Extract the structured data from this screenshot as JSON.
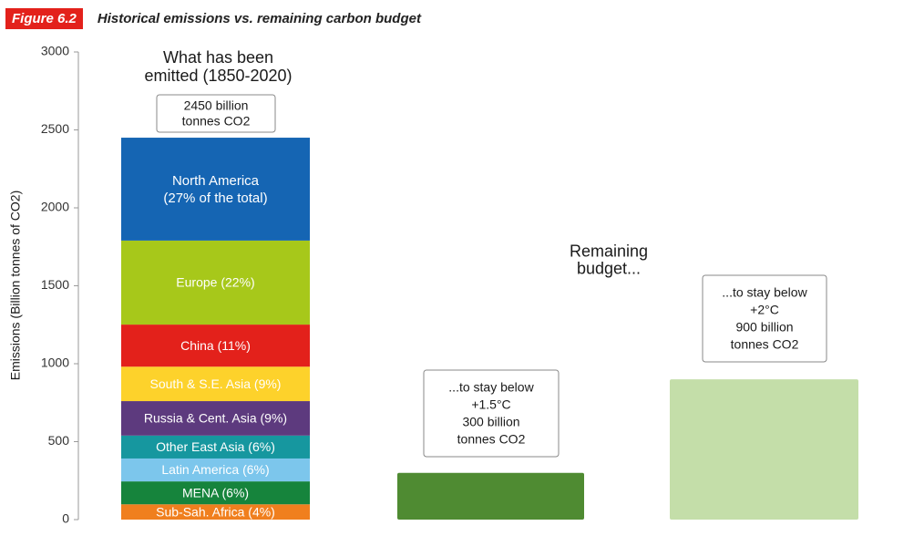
{
  "header": {
    "figure_label": "Figure 6.2",
    "title": "Historical emissions vs. remaining carbon budget"
  },
  "chart_data": {
    "type": "bar",
    "ylabel": "Emissions (Billion tonnes of CO2)",
    "ylim": [
      0,
      3000
    ],
    "yticks": [
      0,
      500,
      1000,
      1500,
      2000,
      2500,
      3000
    ],
    "bars": [
      {
        "id": "emitted",
        "header_lines": [
          "What has been",
          "emitted (1850-2020)"
        ],
        "total_lines": [
          "2450 billion",
          "tonnes CO2"
        ],
        "total": 2450,
        "segments": [
          {
            "label": "Sub-Sah. Africa (4%)",
            "value": 98,
            "color": "#f07f1e"
          },
          {
            "label": "MENA (6%)",
            "value": 147,
            "color": "#16843c"
          },
          {
            "label": "Latin America (6%)",
            "value": 147,
            "color": "#7cc6ec"
          },
          {
            "label": "Other East Asia (6%)",
            "value": 147,
            "color": "#16979f"
          },
          {
            "label": "Russia & Cent. Asia (9%)",
            "value": 221,
            "color": "#5d3a7e"
          },
          {
            "label": "South & S.E. Asia (9%)",
            "value": 221,
            "color": "#fdd22b"
          },
          {
            "label": "China (11%)",
            "value": 270,
            "color": "#e3211b"
          },
          {
            "label": "Europe (22%)",
            "value": 539,
            "color": "#a7c81a"
          },
          {
            "label": "North America\n(27% of the total)",
            "value": 660,
            "color": "#1565b3"
          }
        ]
      },
      {
        "id": "budget-1-5",
        "value": 300,
        "color": "#4f8b32",
        "box_lines": [
          "...to stay below",
          "+1.5°C",
          "300 billion",
          "tonnes CO2"
        ]
      },
      {
        "id": "budget-2",
        "value": 900,
        "color": "#c4dea9",
        "box_lines": [
          "...to stay below",
          "+2°C",
          "900 billion",
          "tonnes CO2"
        ]
      }
    ],
    "annotations": [
      {
        "id": "remaining-budget",
        "lines": [
          "Remaining",
          "budget..."
        ]
      }
    ]
  }
}
